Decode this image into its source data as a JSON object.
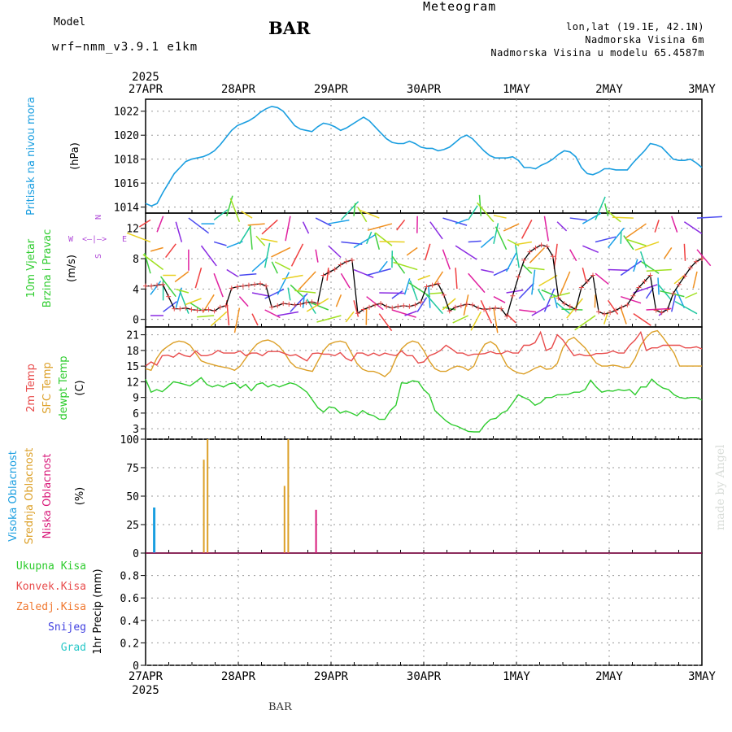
{
  "header": {
    "title": "Meteogram",
    "station": "BAR",
    "model_label": "Model",
    "model_name": "wrf−nmm_v3.9.1  e1km",
    "lonlat": "lon,lat (19.1E, 42.1N)",
    "elevation": "Nadmorska Visina 6m",
    "model_elevation": "Nadmorska Visina u modelu 65.4587m"
  },
  "footer": {
    "station": "BAR",
    "watermark": "made by Angel"
  },
  "colors": {
    "pressure": "#1a9ee0",
    "temp2m": "#e84c4c",
    "sfc": "#dca028",
    "dewpt": "#2ecc2e",
    "high_cloud": "#1a9ee0",
    "mid_cloud": "#dca028",
    "low_cloud": "#d81a7a",
    "precip_total": "#2ecc2e",
    "precip_conv": "#e84c4c",
    "precip_frozen": "#f07830",
    "snow": "#4040e0",
    "hail": "#28c8c8",
    "purple": "#b04ad8"
  },
  "chart_data": [
    {
      "type": "line",
      "panel": "pressure",
      "x_labels": [
        "27APR",
        "28APR",
        "29APR",
        "30APR",
        "1MAY",
        "2MAY",
        "3MAY"
      ],
      "year": "2025",
      "ylabel_lines": [
        "Pritisak na nivou mora",
        "(hPa)"
      ],
      "ylim": [
        1013.5,
        1023
      ],
      "yticks": [
        "1014",
        "1016",
        "1018",
        "1020",
        "1022"
      ],
      "series": [
        {
          "values": [
            1014.3,
            1014.1,
            1014.3,
            1015.2,
            1016.0,
            1016.8,
            1017.3,
            1017.8,
            1018.0,
            1018.1,
            1018.2,
            1018.4,
            1018.7,
            1019.2,
            1019.8,
            1020.4,
            1020.8,
            1021.0,
            1021.2,
            1021.5,
            1021.9,
            1022.2,
            1022.4,
            1022.3,
            1022.0,
            1021.4,
            1020.8,
            1020.5,
            1020.4,
            1020.3,
            1020.7,
            1021.0,
            1020.9,
            1020.7,
            1020.4,
            1020.6,
            1020.9,
            1021.2,
            1021.5,
            1021.2,
            1020.7,
            1020.2,
            1019.7,
            1019.4,
            1019.3,
            1019.3,
            1019.5,
            1019.3,
            1019.0,
            1018.9,
            1018.9,
            1018.7,
            1018.8,
            1019.0,
            1019.4,
            1019.8,
            1020.0,
            1019.7,
            1019.2,
            1018.7,
            1018.3,
            1018.1,
            1018.1,
            1018.1,
            1018.2,
            1017.9,
            1017.3,
            1017.3,
            1017.2,
            1017.5,
            1017.7,
            1018.0,
            1018.4,
            1018.7,
            1018.6,
            1018.2,
            1017.3,
            1016.8,
            1016.7,
            1016.9,
            1017.2,
            1017.2,
            1017.1,
            1017.1,
            1017.1,
            1017.7,
            1018.2,
            1018.7,
            1019.3,
            1019.2,
            1019.0,
            1018.5,
            1018.0,
            1017.9,
            1017.9,
            1018.0,
            1017.7,
            1017.3
          ]
        }
      ]
    },
    {
      "type": "line",
      "panel": "wind",
      "ylabel_lines": [
        "10m Vjetar",
        "Brzina i Pravac",
        "(m/s)"
      ],
      "ylim": [
        -1,
        14
      ],
      "yticks": [
        "0",
        "4",
        "8",
        "12"
      ],
      "compass": {
        "w": "W",
        "e": "E",
        "arrows": "<—|—>",
        "n": "N",
        "s": "S"
      },
      "series": [
        {
          "name": "wind speed",
          "values": [
            4.4,
            4.4,
            4.5,
            4.6,
            3.0,
            1.4,
            1.4,
            1.5,
            1.3,
            1.2,
            1.2,
            1.3,
            1.1,
            1.6,
            1.8,
            4.1,
            4.3,
            4.4,
            4.5,
            4.6,
            4.7,
            4.4,
            1.6,
            1.8,
            2.1,
            2.0,
            1.9,
            2.0,
            2.2,
            2.3,
            2.1,
            5.8,
            6.2,
            6.6,
            7.2,
            7.6,
            7.8,
            0.8,
            1.3,
            1.6,
            1.9,
            2.1,
            1.7,
            1.5,
            1.7,
            1.8,
            1.7,
            1.9,
            2.3,
            4.3,
            4.5,
            4.7,
            3.2,
            1.1,
            1.6,
            1.8,
            2.0,
            1.9,
            1.5,
            1.3,
            1.4,
            1.5,
            1.4,
            0.4,
            3.1,
            5.6,
            7.8,
            8.9,
            9.4,
            9.8,
            9.6,
            8.3,
            2.8,
            2.1,
            1.7,
            1.3,
            4.2,
            5.0,
            5.8,
            1.0,
            0.7,
            0.9,
            1.2,
            1.6,
            1.9,
            3.1,
            4.2,
            5.0,
            5.8,
            1.2,
            0.9,
            1.3,
            3.4,
            4.6,
            5.7,
            6.8,
            7.6,
            8.0
          ]
        }
      ]
    },
    {
      "type": "line",
      "panel": "temperature",
      "ylabel_lines": [
        "2m Temp",
        "SFC Temp",
        "dewpt Temp",
        "(C)"
      ],
      "ylim": [
        1,
        22.5
      ],
      "yticks": [
        "3",
        "6",
        "9",
        "12",
        "15",
        "18",
        "21"
      ],
      "series": [
        {
          "name": "2m Temp",
          "values": [
            15.0,
            15.8,
            15.2,
            17.0,
            17.1,
            16.7,
            17.5,
            17.0,
            16.8,
            17.9,
            17.0,
            17.0,
            17.3,
            18.0,
            17.5,
            17.5,
            17.5,
            17.9,
            17.0,
            17.5,
            17.5,
            17.0,
            17.8,
            17.8,
            17.8,
            17.4,
            17.0,
            17.2,
            16.6,
            16.0,
            17.4,
            17.5,
            17.3,
            17.3,
            17.0,
            17.6,
            16.5,
            16.0,
            17.5,
            17.5,
            17.0,
            17.5,
            17.0,
            17.5,
            17.2,
            17.0,
            17.9,
            17.0,
            17.0,
            15.6,
            15.8,
            17.0,
            17.4,
            18.0,
            19.0,
            18.3,
            17.5,
            17.5,
            17.0,
            17.3,
            17.3,
            17.4,
            17.8,
            17.4,
            17.4,
            17.9,
            17.5,
            17.5,
            19.0,
            19.0,
            19.5,
            21.5,
            18.0,
            18.5,
            21.0,
            20.0,
            18.5,
            17.0,
            17.3,
            17.0,
            17.0,
            17.4,
            17.4,
            17.5,
            17.9,
            17.5,
            17.5,
            19.0,
            20.0,
            21.5,
            18.0,
            18.5,
            18.5,
            19.0,
            19.0,
            19.0,
            19.0,
            18.5,
            18.5,
            18.7,
            18.3
          ]
        },
        {
          "name": "SFC Temp",
          "values": [
            14.5,
            14.2,
            16.5,
            18.0,
            18.8,
            19.5,
            19.8,
            19.6,
            19.0,
            17.5,
            16.0,
            15.6,
            15.3,
            15.0,
            14.8,
            14.6,
            14.2,
            15.0,
            16.5,
            18.0,
            19.2,
            19.8,
            20.0,
            19.6,
            18.8,
            17.5,
            15.8,
            14.8,
            14.5,
            14.2,
            14.0,
            16.0,
            18.0,
            19.2,
            19.6,
            19.8,
            19.5,
            17.5,
            15.5,
            14.4,
            14.0,
            14.0,
            13.6,
            13.0,
            14.0,
            16.5,
            18.3,
            19.3,
            19.8,
            19.5,
            18.0,
            16.0,
            14.5,
            14.0,
            14.0,
            14.6,
            15.0,
            14.8,
            14.2,
            15.0,
            17.5,
            19.2,
            19.7,
            19.0,
            17.0,
            15.0,
            14.2,
            13.7,
            13.5,
            14.0,
            14.6,
            15.0,
            14.4,
            14.5,
            15.5,
            18.5,
            20.0,
            20.5,
            19.5,
            18.5,
            17.0,
            15.6,
            15.0,
            15.0,
            15.2,
            15.0,
            14.7,
            14.8,
            16.5,
            19.0,
            20.5,
            21.5,
            21.8,
            20.5,
            19.0,
            17.5,
            15.0,
            15.0,
            15.0,
            15.0,
            15.0
          ]
        },
        {
          "name": "dewpt Temp",
          "values": [
            12.5,
            10.0,
            10.5,
            10.1,
            11.0,
            12.0,
            11.8,
            11.5,
            11.2,
            12.0,
            12.8,
            11.5,
            11.0,
            11.4,
            11.0,
            11.6,
            11.8,
            10.8,
            11.5,
            10.3,
            11.5,
            11.8,
            11.0,
            11.5,
            11.0,
            11.4,
            11.8,
            11.5,
            10.8,
            10.0,
            8.5,
            7.0,
            6.2,
            7.2,
            7.0,
            6.0,
            6.4,
            6.0,
            5.5,
            6.5,
            5.8,
            5.5,
            4.8,
            4.8,
            6.5,
            7.5,
            11.8,
            11.7,
            12.2,
            12.0,
            10.5,
            9.5,
            6.5,
            5.5,
            4.5,
            3.8,
            3.5,
            3.0,
            2.5,
            2.4,
            2.4,
            3.8,
            4.8,
            5.0,
            6.0,
            6.5,
            8.0,
            9.5,
            9.0,
            8.5,
            7.5,
            8.0,
            9.0,
            9.0,
            9.5,
            9.5,
            9.6,
            10.0,
            10.0,
            10.5,
            12.3,
            11.0,
            10.0,
            10.3,
            10.2,
            10.5,
            10.3,
            10.5,
            9.5,
            11.0,
            11.0,
            12.5,
            11.5,
            10.8,
            10.5,
            9.5,
            9.0,
            8.8,
            9.0,
            9.0,
            8.5
          ]
        }
      ]
    },
    {
      "type": "bar",
      "panel": "cloud",
      "ylabel_lines": [
        "Visoka Oblacnost",
        "Srednja Oblacnost",
        "Niska Oblacnost",
        "(%)"
      ],
      "ylim": [
        0,
        100
      ],
      "yticks": [
        "0",
        "25",
        "50",
        "75",
        "100"
      ],
      "series": [
        {
          "name": "Visoka Oblacnost",
          "bars": [
            {
              "day": 0.09,
              "value": 40
            }
          ]
        },
        {
          "name": "Srednja Oblacnost",
          "bars": [
            {
              "day": 0.63,
              "value": 82
            },
            {
              "day": 0.67,
              "value": 100
            },
            {
              "day": 1.5,
              "value": 59
            },
            {
              "day": 1.54,
              "value": 100
            },
            {
              "day": 1.6,
              "value": 8
            },
            {
              "day": 4.73,
              "value": 3
            }
          ]
        },
        {
          "name": "Niska Oblacnost",
          "bars": [
            {
              "day": 1.84,
              "value": 38
            }
          ]
        }
      ]
    },
    {
      "type": "bar",
      "panel": "precipitation",
      "ylabel_lines": [
        "Ukupna Kisa",
        "Konvek.Kisa",
        "Zaledj.Kisa",
        "Snijeg",
        "Grad",
        "1hr Precip (mm)"
      ],
      "ylim": [
        0,
        1
      ],
      "yticks": [
        "0",
        "0.2",
        "0.4",
        "0.6",
        "0.8"
      ],
      "series": [
        {
          "name": "Ukupna Kisa",
          "values": []
        },
        {
          "name": "Konvek.Kisa",
          "values": []
        },
        {
          "name": "Zaledj.Kisa",
          "values": []
        },
        {
          "name": "Snijeg",
          "values": []
        },
        {
          "name": "Grad",
          "values": []
        }
      ]
    }
  ]
}
